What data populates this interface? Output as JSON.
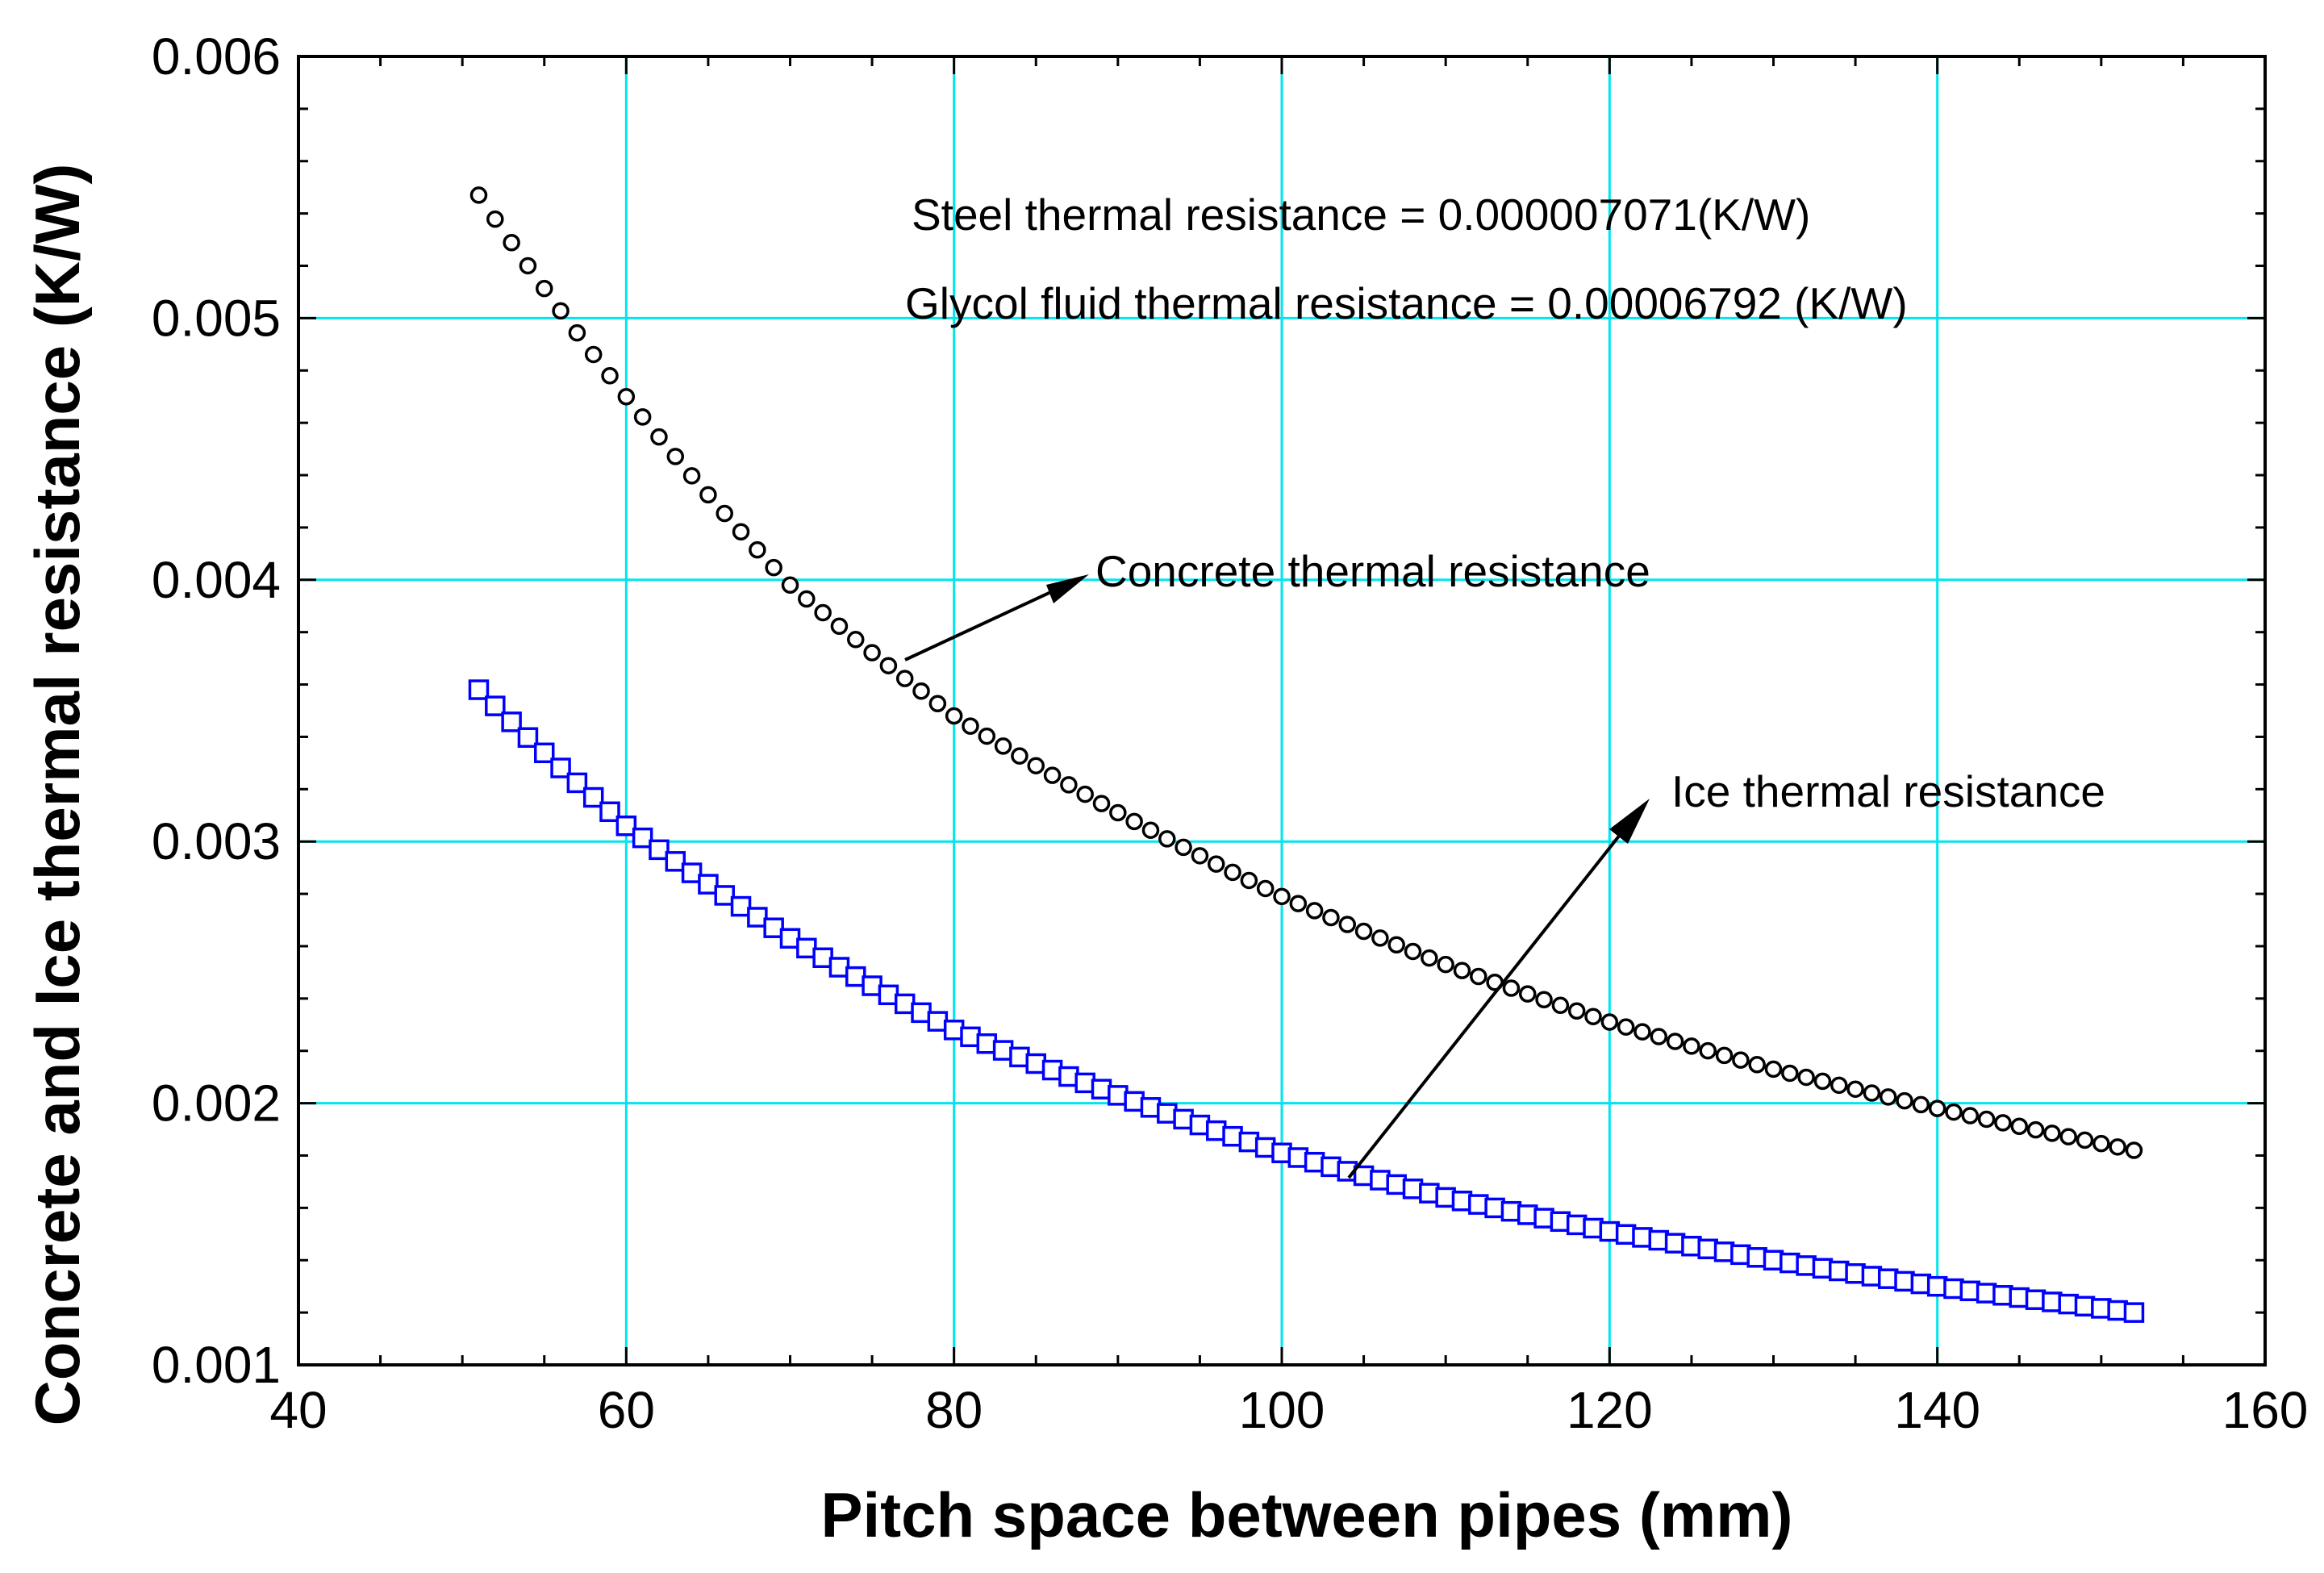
{
  "chart_data": {
    "type": "scatter",
    "title": "",
    "xlabel": "Pitch space between pipes (mm)",
    "ylabel": "Concrete and Ice thermal resistance (K/W)",
    "xlim": [
      40,
      160
    ],
    "ylim": [
      0.001,
      0.006
    ],
    "x_ticks": [
      40,
      60,
      80,
      100,
      120,
      140,
      160
    ],
    "y_ticks": [
      0.001,
      0.002,
      0.003,
      0.004,
      0.005,
      0.006
    ],
    "x_tick_labels": [
      "40",
      "60",
      "80",
      "100",
      "120",
      "140",
      "160"
    ],
    "y_tick_labels": [
      "0.001",
      "0.002",
      "0.003",
      "0.004",
      "0.005",
      "0.006"
    ],
    "grid": true,
    "grid_color": "#00e5ee",
    "x_range": [
      51,
      152
    ],
    "x_step": 1,
    "series": [
      {
        "name": "Concrete thermal resistance",
        "marker": "circle",
        "color": "#000000",
        "anchor_x": [
          51,
          60,
          70,
          80,
          90,
          100,
          110,
          120,
          130,
          140,
          152
        ],
        "anchor_y": [
          0.00547,
          0.0047,
          0.00398,
          0.00348,
          0.00311,
          0.00279,
          0.00253,
          0.00231,
          0.00213,
          0.00198,
          0.00182
        ]
      },
      {
        "name": "Ice thermal resistance",
        "marker": "square",
        "color": "#0000ff",
        "anchor_x": [
          51,
          60,
          70,
          80,
          90,
          100,
          110,
          120,
          130,
          140,
          152
        ],
        "anchor_y": [
          0.00358,
          0.00306,
          0.00263,
          0.00228,
          0.00203,
          0.00181,
          0.00164,
          0.00151,
          0.0014,
          0.0013,
          0.0012
        ]
      }
    ],
    "annotations": {
      "steel": "Steel thermal resistance = 0.000007071(K/W)",
      "glycol": "Glycol fluid thermal resistance = 0.00006792 (K/W)",
      "concrete_label": "Concrete thermal resistance",
      "ice_label": "Ice thermal resistance"
    }
  }
}
